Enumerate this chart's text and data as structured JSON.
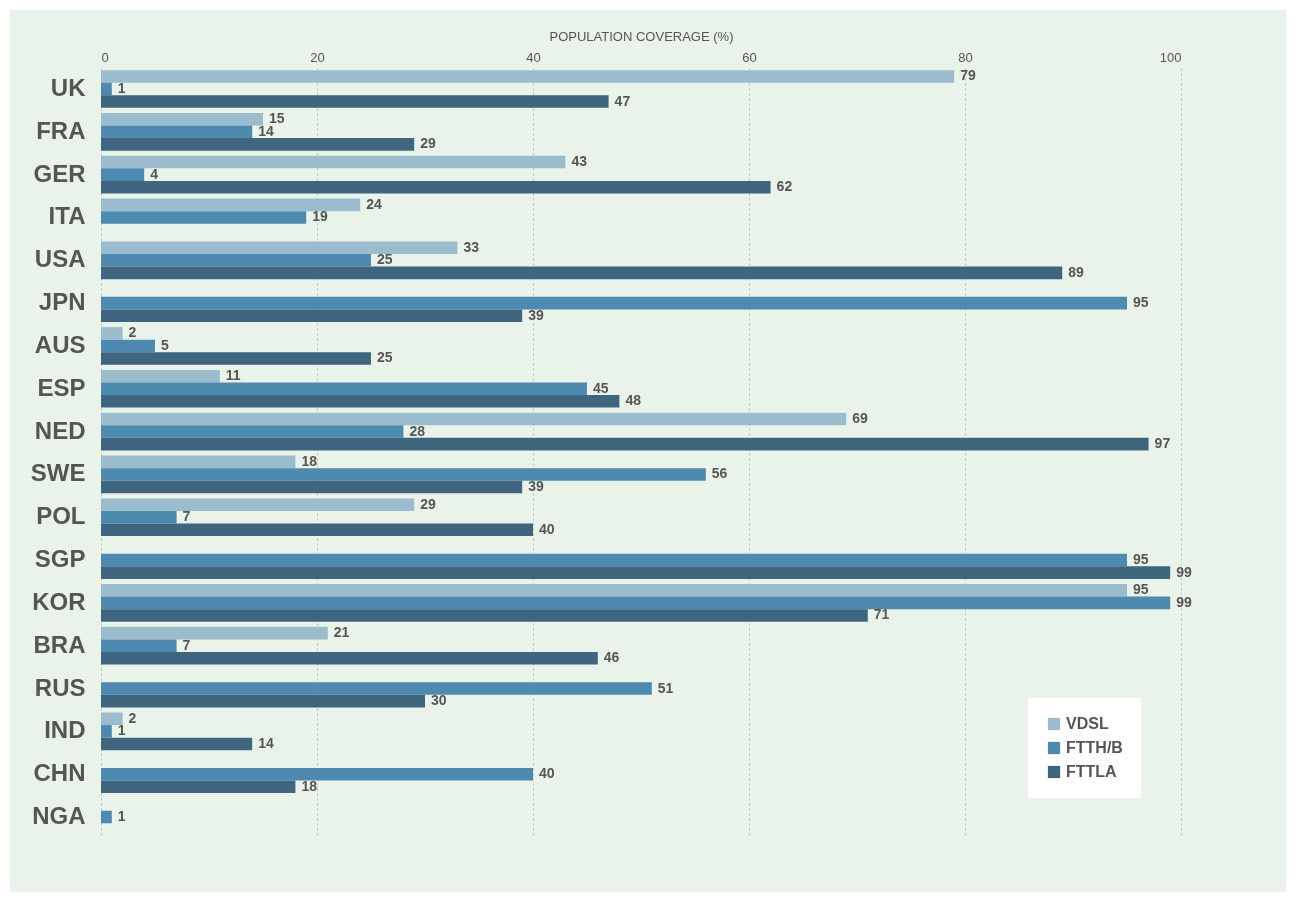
{
  "chart_data": {
    "type": "bar",
    "orientation": "horizontal",
    "xlabel": "POPULATION COVERAGE (%)",
    "categories": [
      "UK",
      "FRA",
      "GER",
      "ITA",
      "USA",
      "JPN",
      "AUS",
      "ESP",
      "NED",
      "SWE",
      "POL",
      "SGP",
      "KOR",
      "BRA",
      "RUS",
      "IND",
      "CHN",
      "NGA"
    ],
    "series": [
      {
        "name": "VDSL",
        "color": "#9bbccc",
        "values": [
          79,
          15,
          43,
          24,
          33,
          null,
          2,
          11,
          69,
          18,
          29,
          null,
          95,
          21,
          null,
          2,
          null,
          null
        ]
      },
      {
        "name": "FTTH/B",
        "color": "#4e8ab0",
        "values": [
          1,
          14,
          4,
          19,
          25,
          95,
          5,
          45,
          28,
          56,
          7,
          95,
          99,
          7,
          51,
          1,
          40,
          1
        ]
      },
      {
        "name": "FTTLA",
        "color": "#40657f",
        "values": [
          47,
          29,
          62,
          null,
          89,
          39,
          25,
          48,
          97,
          39,
          40,
          99,
          71,
          46,
          30,
          14,
          18,
          null
        ]
      }
    ],
    "xlim": [
      0,
      100
    ],
    "xticks": [
      0,
      20,
      40,
      60,
      80,
      100
    ],
    "grid": "x",
    "legend": "bottom right",
    "data_labels": true
  }
}
